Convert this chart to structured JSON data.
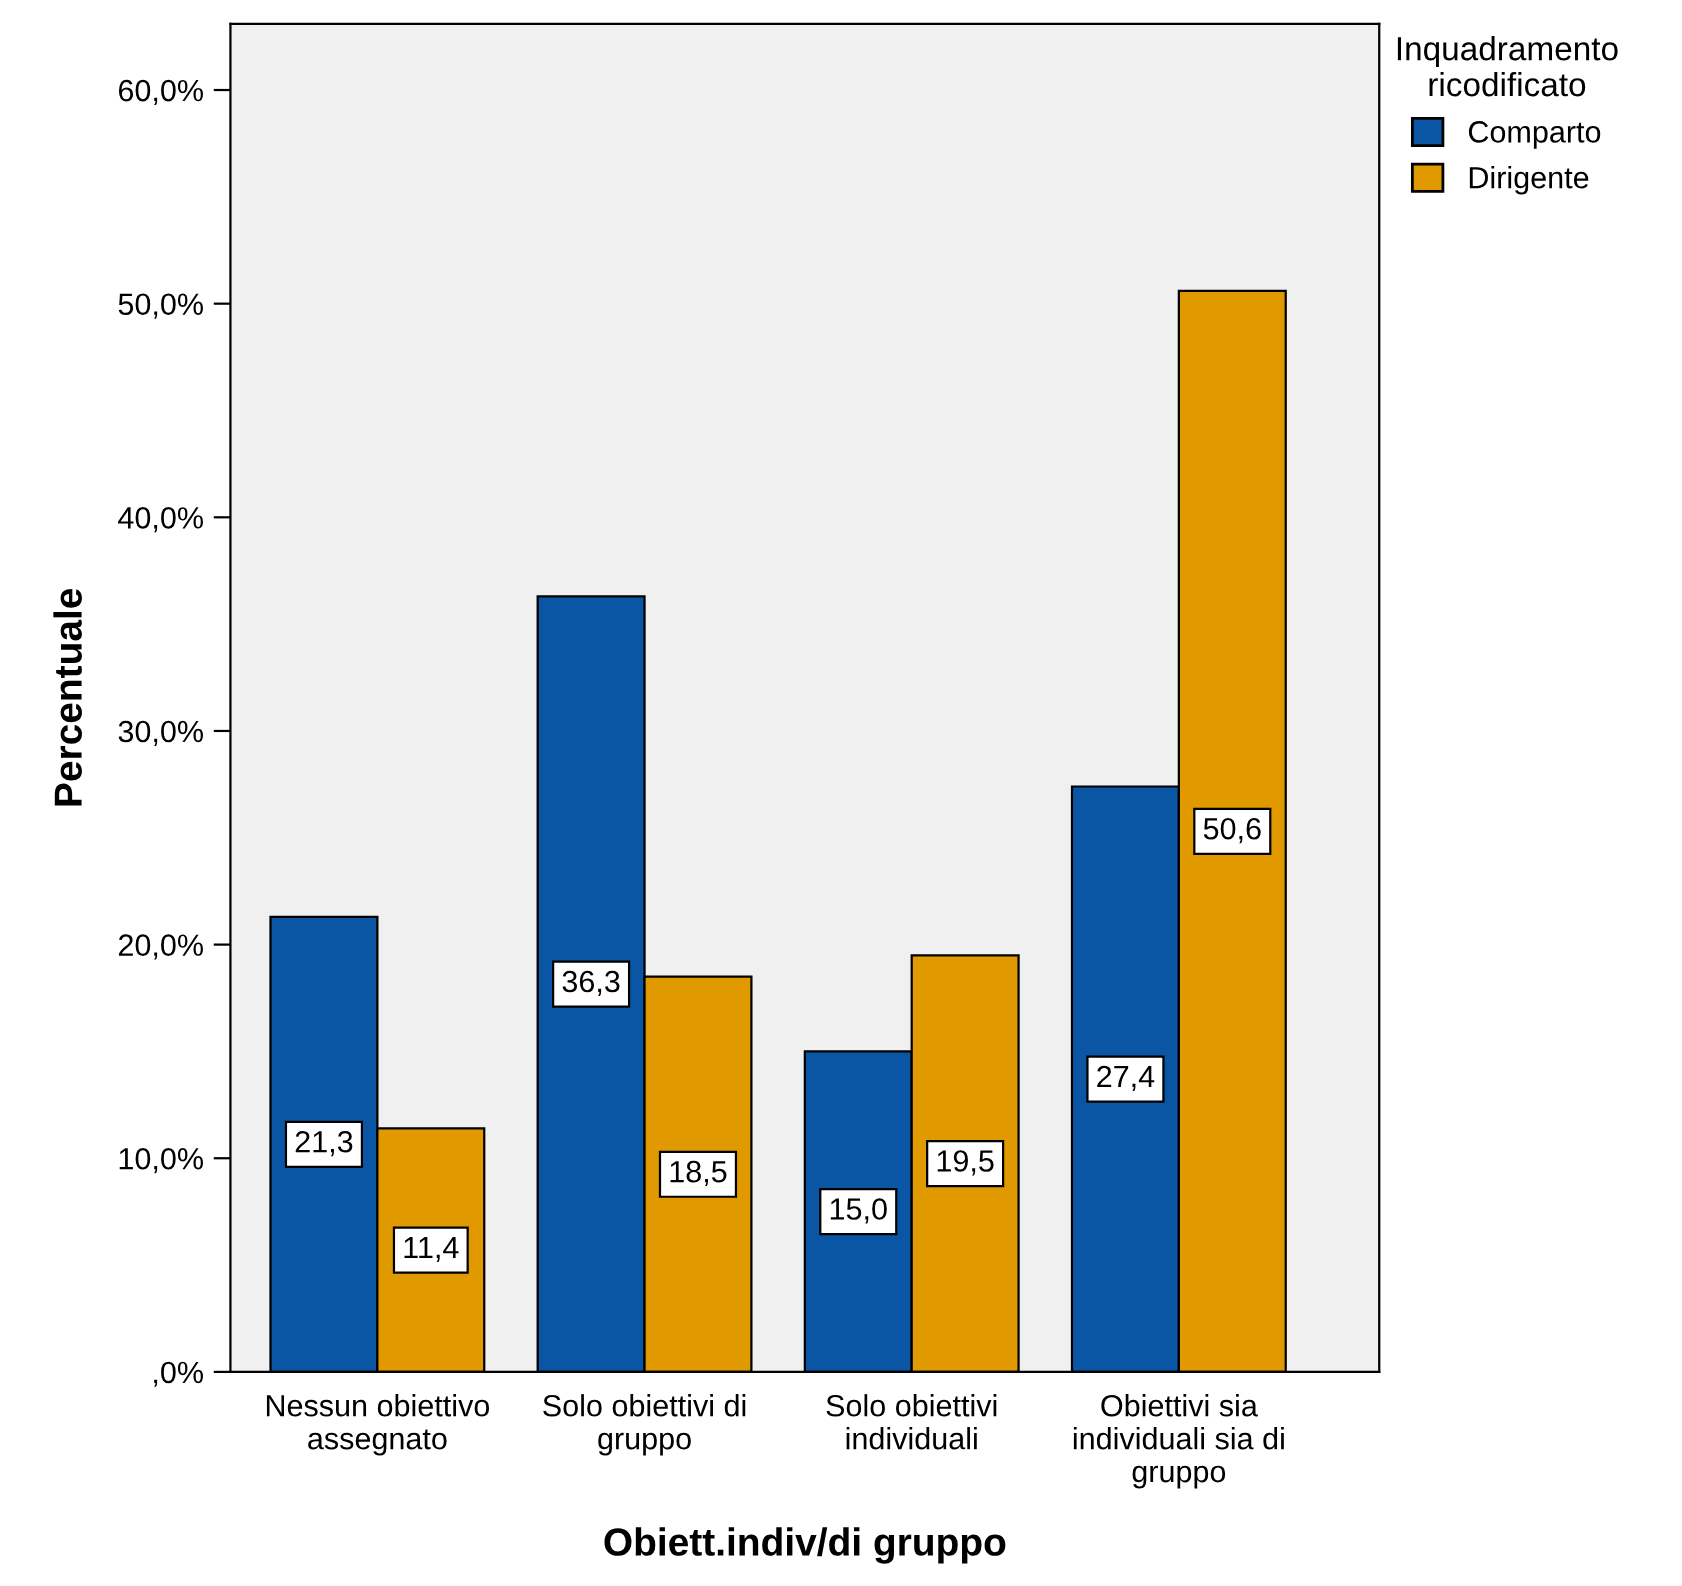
{
  "chart_data": {
    "type": "bar",
    "xlabel": "Obiett.indiv/di gruppo",
    "ylabel": "Percentuale",
    "legend_title": "Inquadramento\nricodificato",
    "categories": [
      "Nessun obiettivo\nassegnato",
      "Solo obiettivi di\ngruppo",
      "Solo obiettivi\nindividuali",
      "Obiettivi sia\nindividuali sia di\ngruppo"
    ],
    "series": [
      {
        "name": "Comparto",
        "color": "#0b56a4",
        "values": [
          21.3,
          36.3,
          15.0,
          27.4
        ],
        "value_labels": [
          "21,3",
          "36,3",
          "15,0",
          "27,4"
        ]
      },
      {
        "name": "Dirigente",
        "color": "#e09a00",
        "values": [
          11.4,
          18.5,
          19.5,
          50.6
        ],
        "value_labels": [
          "11,4",
          "18,5",
          "19,5",
          "50,6"
        ]
      }
    ],
    "ylim": [
      0,
      63.1
    ],
    "yticks": [
      {
        "value": 0,
        "label": ",0%"
      },
      {
        "value": 10,
        "label": "10,0%"
      },
      {
        "value": 20,
        "label": "20,0%"
      },
      {
        "value": 30,
        "label": "30,0%"
      },
      {
        "value": 40,
        "label": "40,0%"
      },
      {
        "value": 50,
        "label": "50,0%"
      },
      {
        "value": 60,
        "label": "60,0%"
      }
    ],
    "grid": false,
    "legend": "top right"
  }
}
